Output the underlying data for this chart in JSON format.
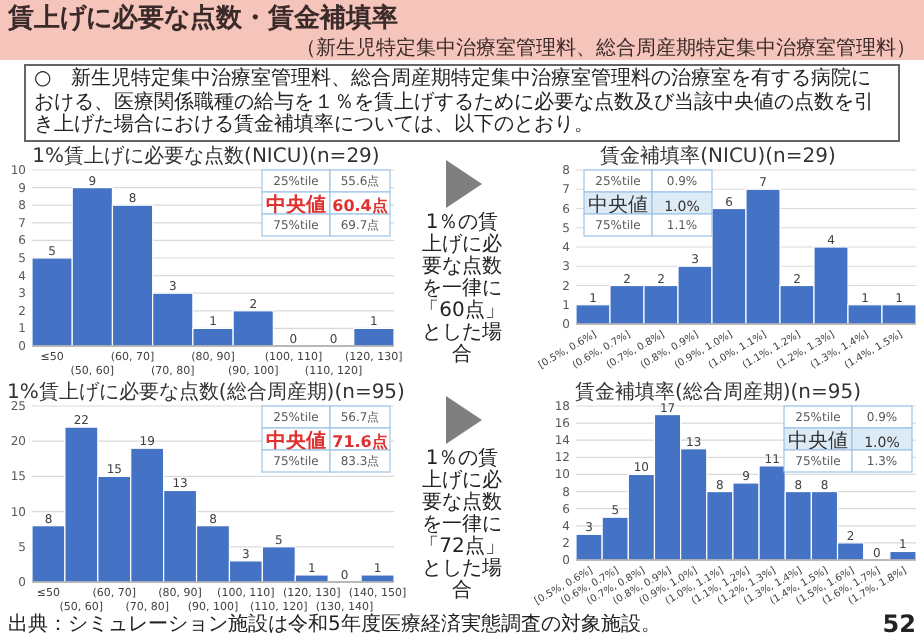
{
  "chart_data": [
    {
      "type": "other",
      "title": "賃上げに必要な点数・賃金補填率",
      "subtitle": "（新生児特定集中治療室管理料、総合周産期特定集中治療室管理料）",
      "annotations": [
        "○　新生児特定集中治療室管理料、総合周産期特定集中治療室管理料の治療室を有する病院における、医療関係職種の給与を１％を賃上げするために必要な点数及び当該中央値の点数を引き上げた場合における賃金補填率については、以下のとおり。",
        "出典：シミュレーション施設は令和5年度医療経済実態調査の対象施設。",
        "52"
      ]
    },
    {
      "type": "bar",
      "title": "1%賃上げに必要な点数(NICU)(n=29)",
      "categories": [
        "≤50",
        "(50, 60]",
        "(60, 70]",
        "(70, 80]",
        "(80, 90]",
        "(90, 100]",
        "(100, 110]",
        "(110, 120]",
        "(120, 130]"
      ],
      "values": [
        5,
        9,
        8,
        3,
        1,
        2,
        0,
        0,
        1
      ],
      "color": "#4472c4",
      "ylim": [
        0,
        10
      ],
      "yticks": [
        0,
        1,
        2,
        3,
        4,
        5,
        6,
        7,
        8,
        9,
        10
      ],
      "grid": "y",
      "data_labels": true,
      "annotations": [
        "25%tile",
        "55.6点",
        "中央値",
        "60.4点",
        "75%tile",
        "69.7点"
      ]
    },
    {
      "type": "bar",
      "title": "賃金補填率(NICU)(n=29)",
      "categories": [
        "[0.5%, 0.6%]",
        "(0.6%, 0.7%]",
        "(0.7%, 0.8%]",
        "(0.8%, 0.9%]",
        "(0.9%, 1.0%]",
        "(1.0%, 1.1%]",
        "(1.1%, 1.2%]",
        "(1.2%, 1.3%]",
        "(1.3%, 1.4%]",
        "(1.4%, 1.5%]"
      ],
      "values": [
        1,
        2,
        2,
        3,
        6,
        7,
        2,
        4,
        1,
        1
      ],
      "color": "#4472c4",
      "ylim": [
        0,
        8
      ],
      "yticks": [
        0,
        1,
        2,
        3,
        4,
        5,
        6,
        7,
        8
      ],
      "grid": "y",
      "data_labels": true,
      "annotations": [
        "25%tile",
        "0.9%",
        "中央値",
        "1.0%",
        "75%tile",
        "1.1%",
        "1％の賃上げに必要な点数を一律に「60点」とした場合"
      ]
    },
    {
      "type": "bar",
      "title": "1%賃上げに必要な点数(総合周産期)(n=95)",
      "categories": [
        "≤50",
        "(50, 60]",
        "(60, 70]",
        "(70, 80]",
        "(80, 90]",
        "(90, 100]",
        "(100, 110]",
        "(110, 120]",
        "(120, 130]",
        "(130, 140]",
        "(140, 150]"
      ],
      "values": [
        8,
        22,
        15,
        19,
        13,
        8,
        3,
        5,
        1,
        0,
        1
      ],
      "color": "#4472c4",
      "ylim": [
        0,
        25
      ],
      "yticks": [
        0,
        5,
        10,
        15,
        20,
        25
      ],
      "grid": "y",
      "data_labels": true,
      "annotations": [
        "25%tile",
        "56.7点",
        "中央値",
        "71.6点",
        "75%tile",
        "83.3点"
      ]
    },
    {
      "type": "bar",
      "title": "賃金補填率(総合周産期)(n=95)",
      "categories": [
        "[0.5%, 0.6%]",
        "(0.6%, 0.7%]",
        "(0.7%, 0.8%]",
        "(0.8%, 0.9%]",
        "(0.9%, 1.0%]",
        "(1.0%, 1.1%]",
        "(1.1%, 1.2%]",
        "(1.2%, 1.3%]",
        "(1.3%, 1.4%]",
        "(1.4%, 1.5%]",
        "(1.5%, 1.6%]",
        "(1.6%, 1.7%]",
        "(1.7%, 1.8%]"
      ],
      "values": [
        3,
        5,
        10,
        17,
        13,
        8,
        9,
        11,
        8,
        8,
        2,
        0,
        1
      ],
      "color": "#4472c4",
      "ylim": [
        0,
        18
      ],
      "yticks": [
        0,
        2,
        4,
        6,
        8,
        10,
        12,
        14,
        16,
        18
      ],
      "grid": "y",
      "data_labels": true,
      "annotations": [
        "25%tile",
        "0.9%",
        "中央値",
        "1.0%",
        "75%tile",
        "1.3%",
        "1％の賃上げに必要な点数を一律に「72点」とした場合"
      ]
    }
  ]
}
